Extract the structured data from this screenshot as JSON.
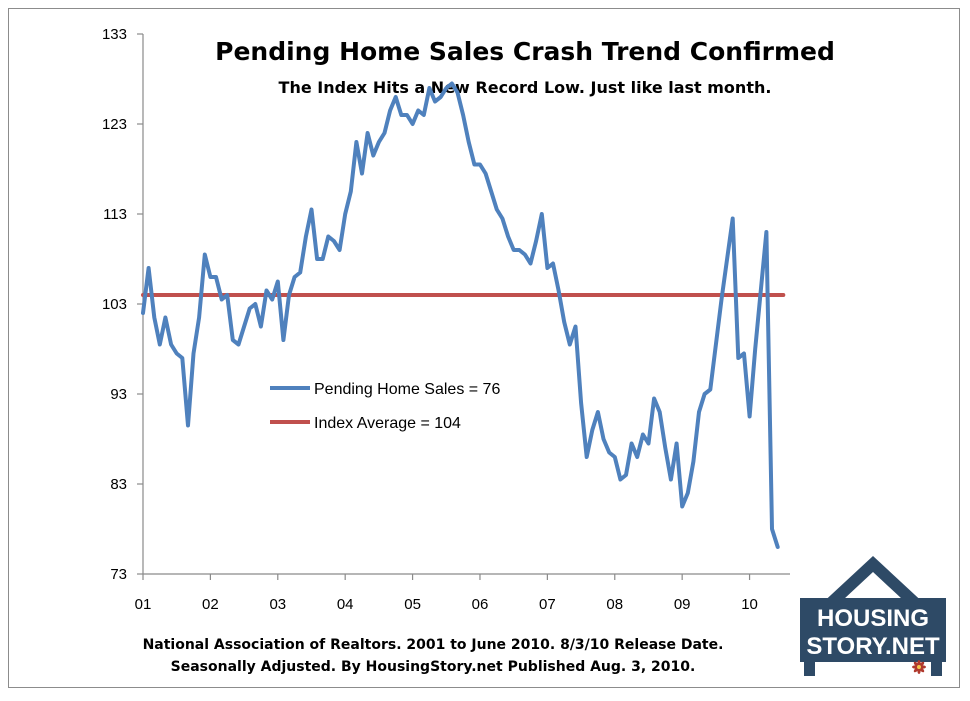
{
  "chart_data": {
    "type": "line",
    "title": "Pending Home Sales Crash Trend Confirmed",
    "subtitle": "The Index Hits a New Record Low. Just like last month.",
    "ylim": [
      73,
      133
    ],
    "yticks": [
      "73",
      "83",
      "93",
      "103",
      "113",
      "123",
      "133"
    ],
    "xticks": [
      "01",
      "02",
      "03",
      "04",
      "05",
      "06",
      "07",
      "08",
      "09",
      "10"
    ],
    "series": [
      {
        "name": "Pending Home Sales = 76",
        "color": "#4f81bd",
        "x": [
          2001.0,
          2001.083,
          2001.167,
          2001.25,
          2001.333,
          2001.417,
          2001.5,
          2001.583,
          2001.667,
          2001.75,
          2001.833,
          2001.917,
          2002.0,
          2002.083,
          2002.167,
          2002.25,
          2002.333,
          2002.417,
          2002.5,
          2002.583,
          2002.667,
          2002.75,
          2002.833,
          2002.917,
          2003.0,
          2003.083,
          2003.167,
          2003.25,
          2003.333,
          2003.417,
          2003.5,
          2003.583,
          2003.667,
          2003.75,
          2003.833,
          2003.917,
          2004.0,
          2004.083,
          2004.167,
          2004.25,
          2004.333,
          2004.417,
          2004.5,
          2004.583,
          2004.667,
          2004.75,
          2004.833,
          2004.917,
          2005.0,
          2005.083,
          2005.167,
          2005.25,
          2005.333,
          2005.417,
          2005.5,
          2005.583,
          2005.667,
          2005.75,
          2005.833,
          2005.917,
          2006.0,
          2006.083,
          2006.167,
          2006.25,
          2006.333,
          2006.417,
          2006.5,
          2006.583,
          2006.667,
          2006.75,
          2006.833,
          2006.917,
          2007.0,
          2007.083,
          2007.167,
          2007.25,
          2007.333,
          2007.417,
          2007.5,
          2007.583,
          2007.667,
          2007.75,
          2007.833,
          2007.917,
          2008.0,
          2008.083,
          2008.167,
          2008.25,
          2008.333,
          2008.417,
          2008.5,
          2008.583,
          2008.667,
          2008.75,
          2008.833,
          2008.917,
          2009.0,
          2009.083,
          2009.167,
          2009.25,
          2009.333,
          2009.417,
          2009.5,
          2009.583,
          2009.667,
          2009.75,
          2009.833,
          2009.917,
          2010.0,
          2010.083,
          2010.167,
          2010.25,
          2010.333,
          2010.417
        ],
        "values": [
          102.0,
          107.0,
          101.5,
          98.5,
          101.5,
          98.5,
          97.5,
          97.0,
          89.5,
          97.5,
          101.5,
          108.5,
          106.0,
          106.0,
          103.5,
          104.0,
          99.0,
          98.5,
          100.5,
          102.5,
          103.0,
          100.5,
          104.5,
          103.5,
          105.5,
          99.0,
          104.0,
          106.0,
          106.5,
          110.5,
          113.5,
          108.0,
          108.0,
          110.5,
          110.0,
          109.0,
          113.0,
          115.5,
          121.0,
          117.5,
          122.0,
          119.5,
          121.0,
          122.0,
          124.5,
          126.0,
          124.0,
          124.0,
          123.0,
          124.5,
          124.0,
          127.0,
          125.5,
          126.0,
          127.0,
          127.5,
          126.5,
          124.0,
          121.0,
          118.5,
          118.5,
          117.5,
          115.5,
          113.5,
          112.5,
          110.5,
          109.0,
          109.0,
          108.5,
          107.5,
          110.0,
          113.0,
          107.0,
          107.5,
          104.5,
          101.0,
          98.5,
          100.5,
          92.0,
          86.0,
          89.0,
          91.0,
          88.0,
          86.5,
          86.0,
          83.5,
          84.0,
          87.5,
          86.0,
          88.5,
          87.5,
          92.5,
          91.0,
          87.0,
          83.5,
          87.5,
          80.5,
          82.0,
          85.5,
          91.0,
          93.0,
          93.5,
          98.5,
          103.5,
          108.0,
          112.5,
          97.0,
          97.5,
          90.5,
          98.0,
          104.5,
          111.0,
          78.0,
          76.0
        ]
      },
      {
        "name": "Index Average = 104",
        "color": "#c0504d",
        "x": [
          2001.0,
          2010.5
        ],
        "values": [
          104.0,
          104.0
        ]
      }
    ],
    "footnote": [
      "National Association of Realtors. 2001 to June 2010. 8/3/10 Release Date.",
      "Seasonally Adjusted. By HousingStory.net Published Aug. 3, 2010."
    ]
  },
  "logo": {
    "line1": "HOUSING",
    "line2": "STORY.NET",
    "color": "#2e4a66",
    "accent": "#b03a2e"
  }
}
